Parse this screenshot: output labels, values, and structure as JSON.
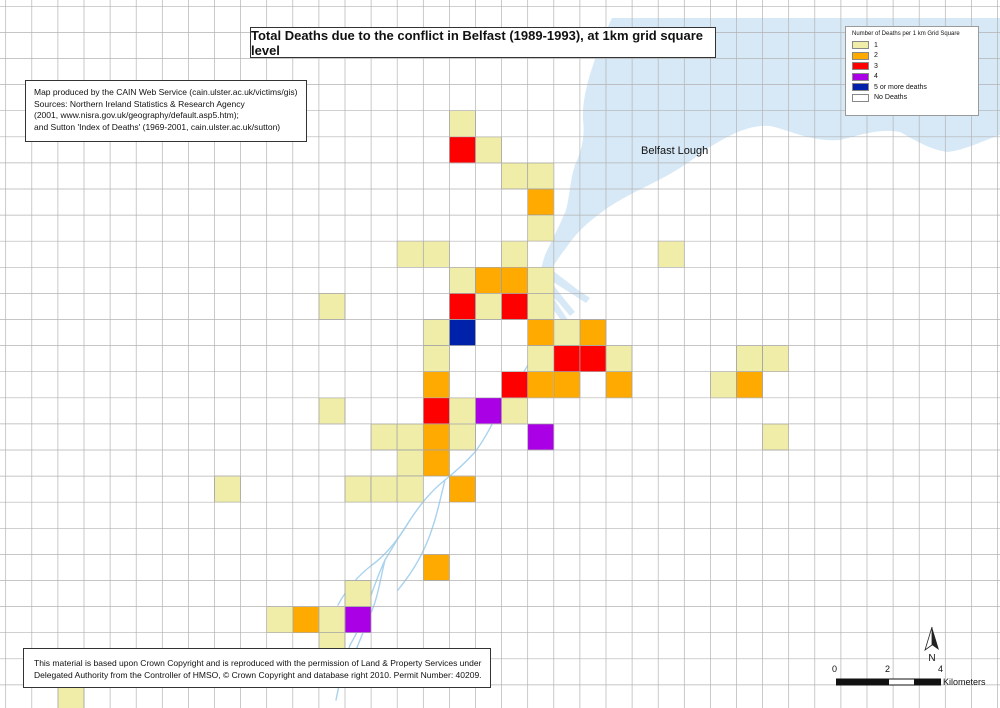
{
  "title": "Total Deaths due to the conflict in Belfast (1989-1993), at 1km grid square level",
  "source_lines": [
    "Map produced by the CAIN Web Service (cain.ulster.ac.uk/victims/gis)",
    "Sources: Northern Ireland Statistics & Research Agency",
    "(2001, www.nisra.gov.uk/geography/default.asp5.htm);",
    "and Sutton 'Index of Deaths' (1969-2001, cain.ulster.ac.uk/sutton)"
  ],
  "copyright_lines": [
    "This material is based upon Crown Copyright and is reproduced with the permission of Land & Property Services under",
    "Delegated Authority from the Controller of HMSO, © Crown Copyright and database right 2010. Permit Number: 40209."
  ],
  "legend": {
    "title": "Number of Deaths per 1 km Grid Square",
    "items": [
      {
        "label": "1",
        "color": "#f0eda8"
      },
      {
        "label": "2",
        "color": "#ffaa00"
      },
      {
        "label": "3",
        "color": "#ff0000"
      },
      {
        "label": "4",
        "color": "#aa00e6"
      },
      {
        "label": "5 or more deaths",
        "color": "#0022aa"
      },
      {
        "label": "No Deaths",
        "color": "#ffffff"
      }
    ]
  },
  "place_label": "Belfast Lough",
  "scale_bar": {
    "ticks": [
      "0",
      "2",
      "4"
    ],
    "unit": "Kilometers"
  },
  "north_label": "N",
  "colors": {
    "water": "#d7e9f6",
    "grid": "#b3b3b3",
    "river": "#a8d2ee"
  },
  "cells": [
    {
      "col": 17,
      "row": 4,
      "count": 1
    },
    {
      "col": 17,
      "row": 5,
      "count": 3
    },
    {
      "col": 18,
      "row": 5,
      "count": 1
    },
    {
      "col": 19,
      "row": 6,
      "count": 1
    },
    {
      "col": 20,
      "row": 6,
      "count": 1
    },
    {
      "col": 20,
      "row": 7,
      "count": 2
    },
    {
      "col": 20,
      "row": 8,
      "count": 1
    },
    {
      "col": 15,
      "row": 9,
      "count": 1
    },
    {
      "col": 16,
      "row": 9,
      "count": 1
    },
    {
      "col": 19,
      "row": 9,
      "count": 1
    },
    {
      "col": 25,
      "row": 9,
      "count": 1
    },
    {
      "col": 17,
      "row": 10,
      "count": 1
    },
    {
      "col": 18,
      "row": 10,
      "count": 2
    },
    {
      "col": 19,
      "row": 10,
      "count": 2
    },
    {
      "col": 20,
      "row": 10,
      "count": 1
    },
    {
      "col": 12,
      "row": 11,
      "count": 1
    },
    {
      "col": 17,
      "row": 11,
      "count": 3
    },
    {
      "col": 18,
      "row": 11,
      "count": 1
    },
    {
      "col": 19,
      "row": 11,
      "count": 3
    },
    {
      "col": 20,
      "row": 11,
      "count": 1
    },
    {
      "col": 16,
      "row": 12,
      "count": 1
    },
    {
      "col": 17,
      "row": 12,
      "count": 5
    },
    {
      "col": 20,
      "row": 12,
      "count": 2
    },
    {
      "col": 21,
      "row": 12,
      "count": 1
    },
    {
      "col": 22,
      "row": 12,
      "count": 2
    },
    {
      "col": 16,
      "row": 13,
      "count": 1
    },
    {
      "col": 20,
      "row": 13,
      "count": 1
    },
    {
      "col": 21,
      "row": 13,
      "count": 3
    },
    {
      "col": 22,
      "row": 13,
      "count": 3
    },
    {
      "col": 23,
      "row": 13,
      "count": 1
    },
    {
      "col": 28,
      "row": 13,
      "count": 1
    },
    {
      "col": 29,
      "row": 13,
      "count": 1
    },
    {
      "col": 16,
      "row": 14,
      "count": 2
    },
    {
      "col": 19,
      "row": 14,
      "count": 3
    },
    {
      "col": 20,
      "row": 14,
      "count": 2
    },
    {
      "col": 21,
      "row": 14,
      "count": 2
    },
    {
      "col": 23,
      "row": 14,
      "count": 2
    },
    {
      "col": 27,
      "row": 14,
      "count": 1
    },
    {
      "col": 28,
      "row": 14,
      "count": 2
    },
    {
      "col": 12,
      "row": 15,
      "count": 1
    },
    {
      "col": 16,
      "row": 15,
      "count": 3
    },
    {
      "col": 17,
      "row": 15,
      "count": 1
    },
    {
      "col": 18,
      "row": 15,
      "count": 4
    },
    {
      "col": 19,
      "row": 15,
      "count": 1
    },
    {
      "col": 14,
      "row": 16,
      "count": 1
    },
    {
      "col": 15,
      "row": 16,
      "count": 1
    },
    {
      "col": 16,
      "row": 16,
      "count": 2
    },
    {
      "col": 17,
      "row": 16,
      "count": 1
    },
    {
      "col": 20,
      "row": 16,
      "count": 4
    },
    {
      "col": 29,
      "row": 16,
      "count": 1
    },
    {
      "col": 15,
      "row": 17,
      "count": 1
    },
    {
      "col": 16,
      "row": 17,
      "count": 2
    },
    {
      "col": 8,
      "row": 18,
      "count": 1
    },
    {
      "col": 13,
      "row": 18,
      "count": 1
    },
    {
      "col": 14,
      "row": 18,
      "count": 1
    },
    {
      "col": 15,
      "row": 18,
      "count": 1
    },
    {
      "col": 17,
      "row": 18,
      "count": 2
    },
    {
      "col": 16,
      "row": 21,
      "count": 2
    },
    {
      "col": 13,
      "row": 22,
      "count": 1
    },
    {
      "col": 10,
      "row": 23,
      "count": 1
    },
    {
      "col": 11,
      "row": 23,
      "count": 2
    },
    {
      "col": 12,
      "row": 23,
      "count": 1
    },
    {
      "col": 13,
      "row": 23,
      "count": 4
    },
    {
      "col": 12,
      "row": 24,
      "count": 1
    },
    {
      "col": 2,
      "row": 26,
      "count": 1
    }
  ]
}
